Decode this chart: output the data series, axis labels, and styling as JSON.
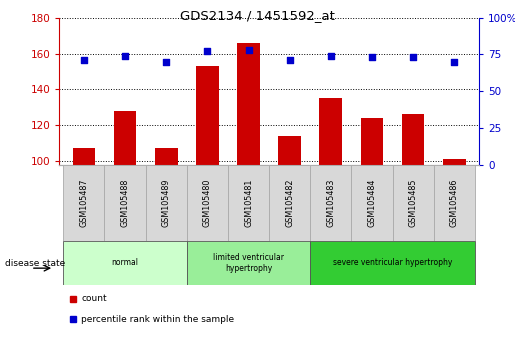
{
  "title": "GDS2134 / 1451592_at",
  "samples": [
    "GSM105487",
    "GSM105488",
    "GSM105489",
    "GSM105480",
    "GSM105481",
    "GSM105482",
    "GSM105483",
    "GSM105484",
    "GSM105485",
    "GSM105486"
  ],
  "counts": [
    107,
    128,
    107,
    153,
    166,
    114,
    135,
    124,
    126,
    101
  ],
  "percentiles": [
    71,
    74,
    70,
    77,
    78,
    71,
    74,
    73,
    73,
    70
  ],
  "ylim_left": [
    98,
    180
  ],
  "ylim_right": [
    0,
    100
  ],
  "yticks_left": [
    100,
    120,
    140,
    160,
    180
  ],
  "yticks_right": [
    0,
    25,
    50,
    75,
    100
  ],
  "groups": [
    {
      "label": "normal",
      "start": 0,
      "end": 3,
      "color": "#ccffcc"
    },
    {
      "label": "limited ventricular\nhypertrophy",
      "start": 3,
      "end": 6,
      "color": "#99ee99"
    },
    {
      "label": "severe ventricular hypertrophy",
      "start": 6,
      "end": 10,
      "color": "#33cc33"
    }
  ],
  "bar_color": "#cc0000",
  "dot_color": "#0000cc",
  "bar_width": 0.55,
  "grid_color": "black",
  "ylabel_left_color": "#cc0000",
  "ylabel_right_color": "#0000cc",
  "legend_items": [
    {
      "label": "count",
      "color": "#cc0000"
    },
    {
      "label": "percentile rank within the sample",
      "color": "#0000cc"
    }
  ],
  "disease_state_label": "disease state",
  "xlabel_area_color": "#d8d8d8",
  "xlabel_area_border": "#aaaaaa"
}
